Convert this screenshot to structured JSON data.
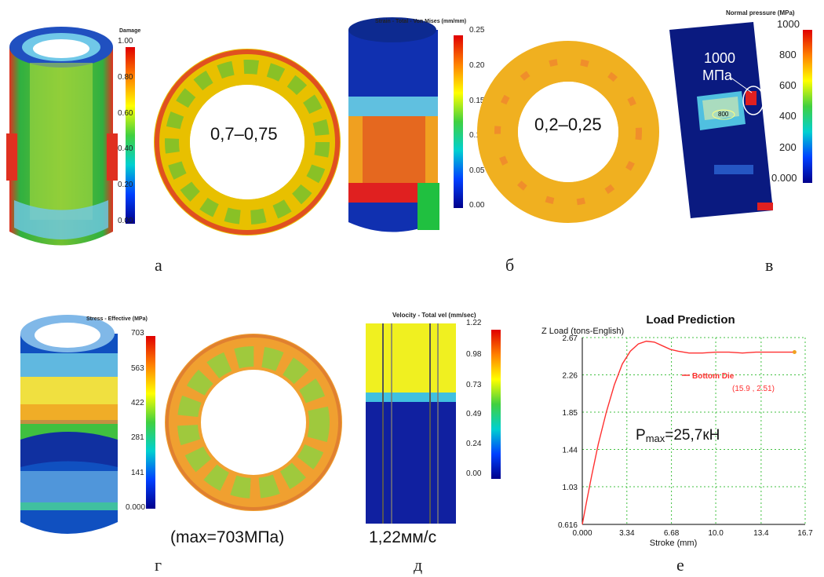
{
  "captions": {
    "a": "а",
    "b": "б",
    "v": "в",
    "g": "г",
    "d": "д",
    "e": "е"
  },
  "panel_a": {
    "legend_title": "Damage",
    "ticks": [
      "1.00",
      "0.80",
      "0.60",
      "0.40",
      "0.20",
      "0.00"
    ],
    "ring_label": "0,7–0,75"
  },
  "panel_b": {
    "legend_title": "Strain - Total - Von Mises (mm/mm)",
    "ticks": [
      "0.25",
      "0.20",
      "0.15",
      "0.10",
      "0.05",
      "0.00"
    ],
    "ring_label": "0,2–0,25"
  },
  "panel_v": {
    "legend_title": "Normal pressure (MPa)",
    "ticks": [
      "1000",
      "800",
      "600",
      "400",
      "200",
      "0.000"
    ],
    "callout_value": "1000",
    "callout_unit": "МПа",
    "small_label": "800"
  },
  "panel_g": {
    "legend_title": "Stress - Effective (MPa)",
    "ticks": [
      "703",
      "563",
      "422",
      "281",
      "141",
      "0.000"
    ],
    "note": "(max=703МПа)"
  },
  "panel_d": {
    "legend_title": "Velocity - Total vel (mm/sec)",
    "ticks": [
      "1.22",
      "0.98",
      "0.73",
      "0.49",
      "0.24",
      "0.00"
    ],
    "note": "1,22мм/с"
  },
  "chart_data": {
    "type": "line",
    "title": "Load Prediction",
    "ylabel": "Z Load (tons-English)",
    "xlabel": "Stroke (mm)",
    "x_ticks": [
      "0.000",
      "3.34",
      "6.68",
      "10.0",
      "13.4",
      "16.7"
    ],
    "y_ticks": [
      "2.67",
      "2.26",
      "1.85",
      "1.44",
      "1.03",
      "0.616"
    ],
    "xlim": [
      0,
      16.7
    ],
    "ylim": [
      0.616,
      2.67
    ],
    "grid": true,
    "legend_position": "top-right",
    "series": [
      {
        "name": "Bottom Die",
        "color": "#ff3030",
        "x": [
          0,
          0.3,
          0.7,
          1.2,
          1.8,
          2.4,
          3.0,
          3.6,
          4.2,
          4.8,
          5.4,
          6.0,
          6.6,
          7.2,
          8.0,
          9.0,
          10.0,
          11.0,
          12.0,
          13.0,
          14.0,
          15.0,
          15.9
        ],
        "y": [
          0.616,
          0.85,
          1.15,
          1.5,
          1.85,
          2.15,
          2.38,
          2.52,
          2.6,
          2.63,
          2.62,
          2.58,
          2.54,
          2.52,
          2.5,
          2.5,
          2.51,
          2.51,
          2.5,
          2.51,
          2.51,
          2.51,
          2.51
        ]
      }
    ],
    "annotation": "(15.9 , 2.51)",
    "overlay_text": "=25,7кН",
    "overlay_prefix": "P",
    "overlay_sub": "max"
  }
}
